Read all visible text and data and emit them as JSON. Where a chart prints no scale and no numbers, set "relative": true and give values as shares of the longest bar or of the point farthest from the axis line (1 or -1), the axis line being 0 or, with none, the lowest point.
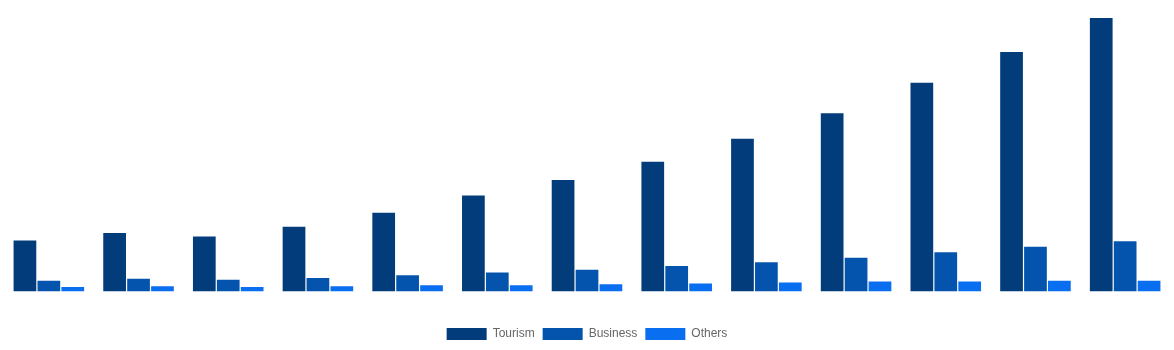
{
  "chart_data": {
    "type": "bar",
    "relative": true,
    "legend": "bottom",
    "grid": false,
    "categories": [
      null,
      null,
      null,
      null,
      null,
      null,
      null,
      null,
      null,
      null,
      null,
      null,
      null
    ],
    "series": [
      {
        "name": "Tourism",
        "color": "#033c7a",
        "values": [
          0.187,
          0.214,
          0.201,
          0.237,
          0.288,
          0.351,
          0.408,
          0.475,
          0.559,
          0.652,
          0.763,
          0.876,
          1
        ]
      },
      {
        "name": "Business",
        "color": "#0454ad",
        "values": [
          0.04,
          0.047,
          0.043,
          0.05,
          0.06,
          0.07,
          0.08,
          0.094,
          0.107,
          0.124,
          0.144,
          0.164,
          0.184
        ]
      },
      {
        "name": "Others",
        "color": "#0a6ef0",
        "values": [
          0.017,
          0.02,
          0.017,
          0.02,
          0.023,
          0.023,
          0.027,
          0.03,
          0.033,
          0.037,
          0.037,
          0.04,
          0.04
        ]
      }
    ]
  }
}
